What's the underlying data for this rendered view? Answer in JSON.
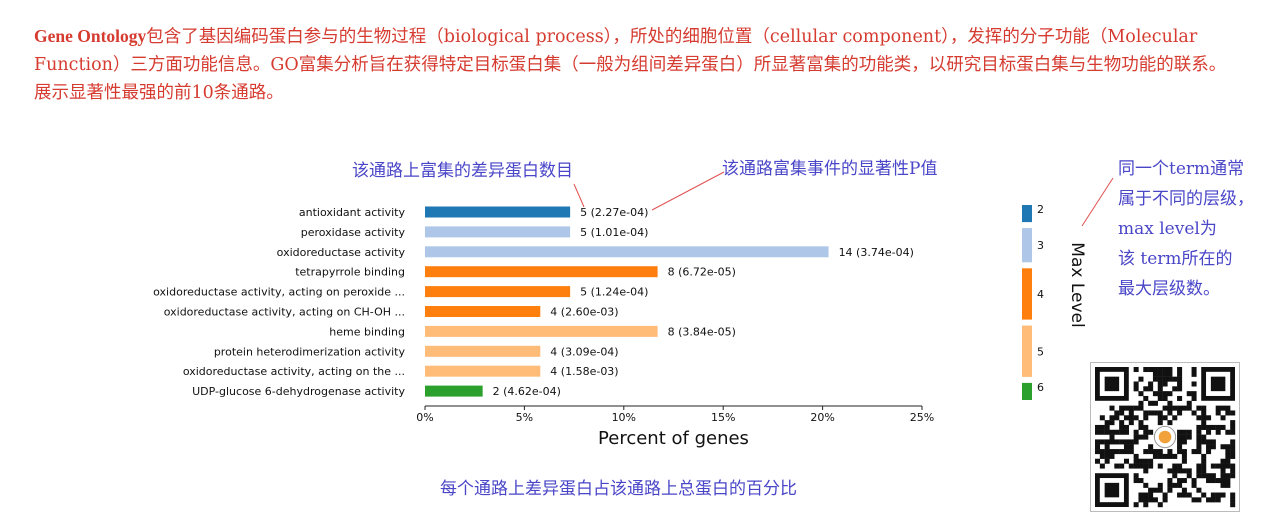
{
  "intro": {
    "lead": "Gene Ontology",
    "text": "包含了基因编码蛋白参与的生物过程（biological process），所处的细胞位置（cellular component），发挥的分子功能（Molecular Function）三方面功能信息。GO富集分析旨在获得特定目标蛋白集（一般为组间差异蛋白）所显著富集的功能类，以研究目标蛋白集与生物功能的联系。展示显著性最强的前10条通路。"
  },
  "annotations": {
    "count_note": "该通路上富集的差异蛋白数目",
    "pvalue_note": "该通路富集事件的显著性P值",
    "bottom_note": "每个通路上差异蛋白占该通路上总蛋白的百分比",
    "side_note_lines": [
      "同一个term通常",
      "属于不同的层级，",
      "max level为",
      "该 term所在的",
      "最大层级数。"
    ]
  },
  "chart_data": {
    "type": "bar",
    "orientation": "horizontal",
    "categories": [
      "antioxidant activity",
      "peroxidase activity",
      "oxidoreductase activity",
      "tetrapyrrole binding",
      "oxidoreductase activity, acting on peroxide ...",
      "oxidoreductase activity, acting on CH-OH ...",
      "heme binding",
      "protein heterodimerization activity",
      "oxidoreductase activity, acting on the ...",
      "UDP-glucose 6-dehydrogenase activity"
    ],
    "values": [
      7.3,
      7.3,
      20.3,
      11.7,
      7.3,
      5.8,
      11.7,
      5.8,
      5.8,
      2.9
    ],
    "bar_labels": [
      "5 (2.27e-04)",
      "5 (1.01e-04)",
      "14 (3.74e-04)",
      "8 (6.72e-05)",
      "5 (1.24e-04)",
      "4 (2.60e-03)",
      "8 (3.84e-05)",
      "4 (3.09e-04)",
      "4 (1.58e-03)",
      "2 (4.62e-04)"
    ],
    "levels": [
      2,
      3,
      3,
      4,
      4,
      4,
      5,
      5,
      5,
      6
    ],
    "xlabel": "Percent of genes",
    "xlim": [
      0,
      25
    ],
    "xticks": [
      0,
      5,
      10,
      15,
      20,
      25
    ],
    "xtick_labels": [
      "0%",
      "5%",
      "10%",
      "15%",
      "20%",
      "25%"
    ],
    "legend": {
      "title": "Max Level",
      "levels": [
        2,
        3,
        4,
        5,
        6
      ],
      "labels": [
        "2",
        "3",
        "4",
        "5",
        "6"
      ],
      "colors": [
        "#1f77b4",
        "#aec7e8",
        "#ff7f0e",
        "#ffbb78",
        "#2ca02c"
      ]
    },
    "level_colors": {
      "2": "#1f77b4",
      "3": "#aec7e8",
      "4": "#ff7f0e",
      "5": "#ffbb78",
      "6": "#2ca02c"
    }
  }
}
